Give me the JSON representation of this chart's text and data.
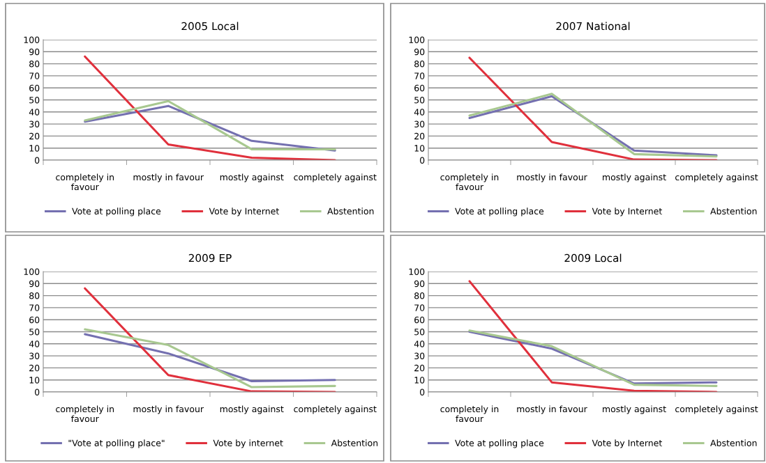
{
  "chart_data": [
    {
      "type": "line",
      "title": "2005 Local",
      "categories": [
        "completely in favour",
        "mostly in favour",
        "mostly against",
        "completely against"
      ],
      "ylim": [
        0,
        100
      ],
      "yticks": [
        0,
        10,
        20,
        30,
        40,
        50,
        60,
        70,
        80,
        90,
        100
      ],
      "grid": "y",
      "legend": "bottom",
      "marker": "none",
      "line_style": "solid",
      "series": [
        {
          "name": "Vote at polling place",
          "color": "#7470b0",
          "values": [
            32,
            45,
            16,
            8
          ]
        },
        {
          "name": "Vote by Internet",
          "color": "#e0303c",
          "values": [
            86,
            13,
            2,
            0
          ]
        },
        {
          "name": "Abstention",
          "color": "#a8c890",
          "values": [
            33,
            49,
            9,
            9
          ]
        }
      ]
    },
    {
      "type": "line",
      "title": "2007 National",
      "categories": [
        "completely in favour",
        "mostly in favour",
        "mostly against",
        "completely against"
      ],
      "ylim": [
        0,
        100
      ],
      "yticks": [
        0,
        10,
        20,
        30,
        40,
        50,
        60,
        70,
        80,
        90,
        100
      ],
      "grid": "y",
      "legend": "bottom",
      "marker": "none",
      "line_style": "solid",
      "series": [
        {
          "name": "Vote at polling place",
          "color": "#7470b0",
          "values": [
            35,
            53,
            8,
            4
          ]
        },
        {
          "name": "Vote by Internet",
          "color": "#e0303c",
          "values": [
            85,
            15,
            0.5,
            0
          ]
        },
        {
          "name": "Abstention",
          "color": "#a8c890",
          "values": [
            37,
            55,
            5,
            3
          ]
        }
      ]
    },
    {
      "type": "line",
      "title": "2009 EP",
      "categories": [
        "completely in favour",
        "mostly in favour",
        "mostly against",
        "completely against"
      ],
      "ylim": [
        0,
        100
      ],
      "yticks": [
        0,
        10,
        20,
        30,
        40,
        50,
        60,
        70,
        80,
        90,
        100
      ],
      "grid": "y",
      "legend": "bottom",
      "marker": "none",
      "line_style": "solid",
      "series": [
        {
          "name": "\"Vote at polling place\"",
          "color": "#7470b0",
          "values": [
            48,
            32,
            9,
            10
          ]
        },
        {
          "name": "Vote by internet",
          "color": "#e0303c",
          "values": [
            86,
            14,
            0.5,
            0
          ]
        },
        {
          "name": "Abstention",
          "color": "#a8c890",
          "values": [
            52,
            39,
            4,
            5
          ]
        }
      ]
    },
    {
      "type": "line",
      "title": "2009 Local",
      "categories": [
        "completely in favour",
        "mostly in favour",
        "mostly against",
        "completely against"
      ],
      "ylim": [
        0,
        100
      ],
      "yticks": [
        0,
        10,
        20,
        30,
        40,
        50,
        60,
        70,
        80,
        90,
        100
      ],
      "grid": "y",
      "legend": "bottom",
      "marker": "none",
      "line_style": "solid",
      "series": [
        {
          "name": "Vote at polling place",
          "color": "#7470b0",
          "values": [
            50,
            36,
            7,
            8
          ]
        },
        {
          "name": "Vote by Internet",
          "color": "#e0303c",
          "values": [
            92,
            8,
            1,
            0
          ]
        },
        {
          "name": "Abstention",
          "color": "#a8c890",
          "values": [
            51,
            38,
            6,
            5
          ]
        }
      ]
    }
  ]
}
